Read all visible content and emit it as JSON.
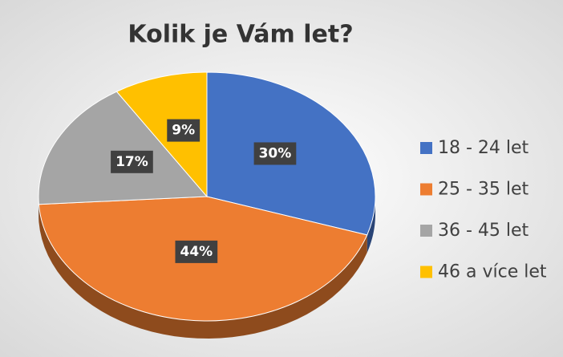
{
  "chart_data": {
    "type": "pie",
    "title": "Kolik je Vám let?",
    "categories": [
      "18 - 24 let",
      "25 - 35 let",
      "36 - 45 let",
      "46 a více let"
    ],
    "values": [
      30,
      44,
      17,
      9
    ],
    "value_labels": [
      "30%",
      "44%",
      "17%",
      "9%"
    ],
    "colors": [
      "#4472c4",
      "#ed7d31",
      "#a5a5a5",
      "#ffc000"
    ],
    "legend": "right"
  }
}
